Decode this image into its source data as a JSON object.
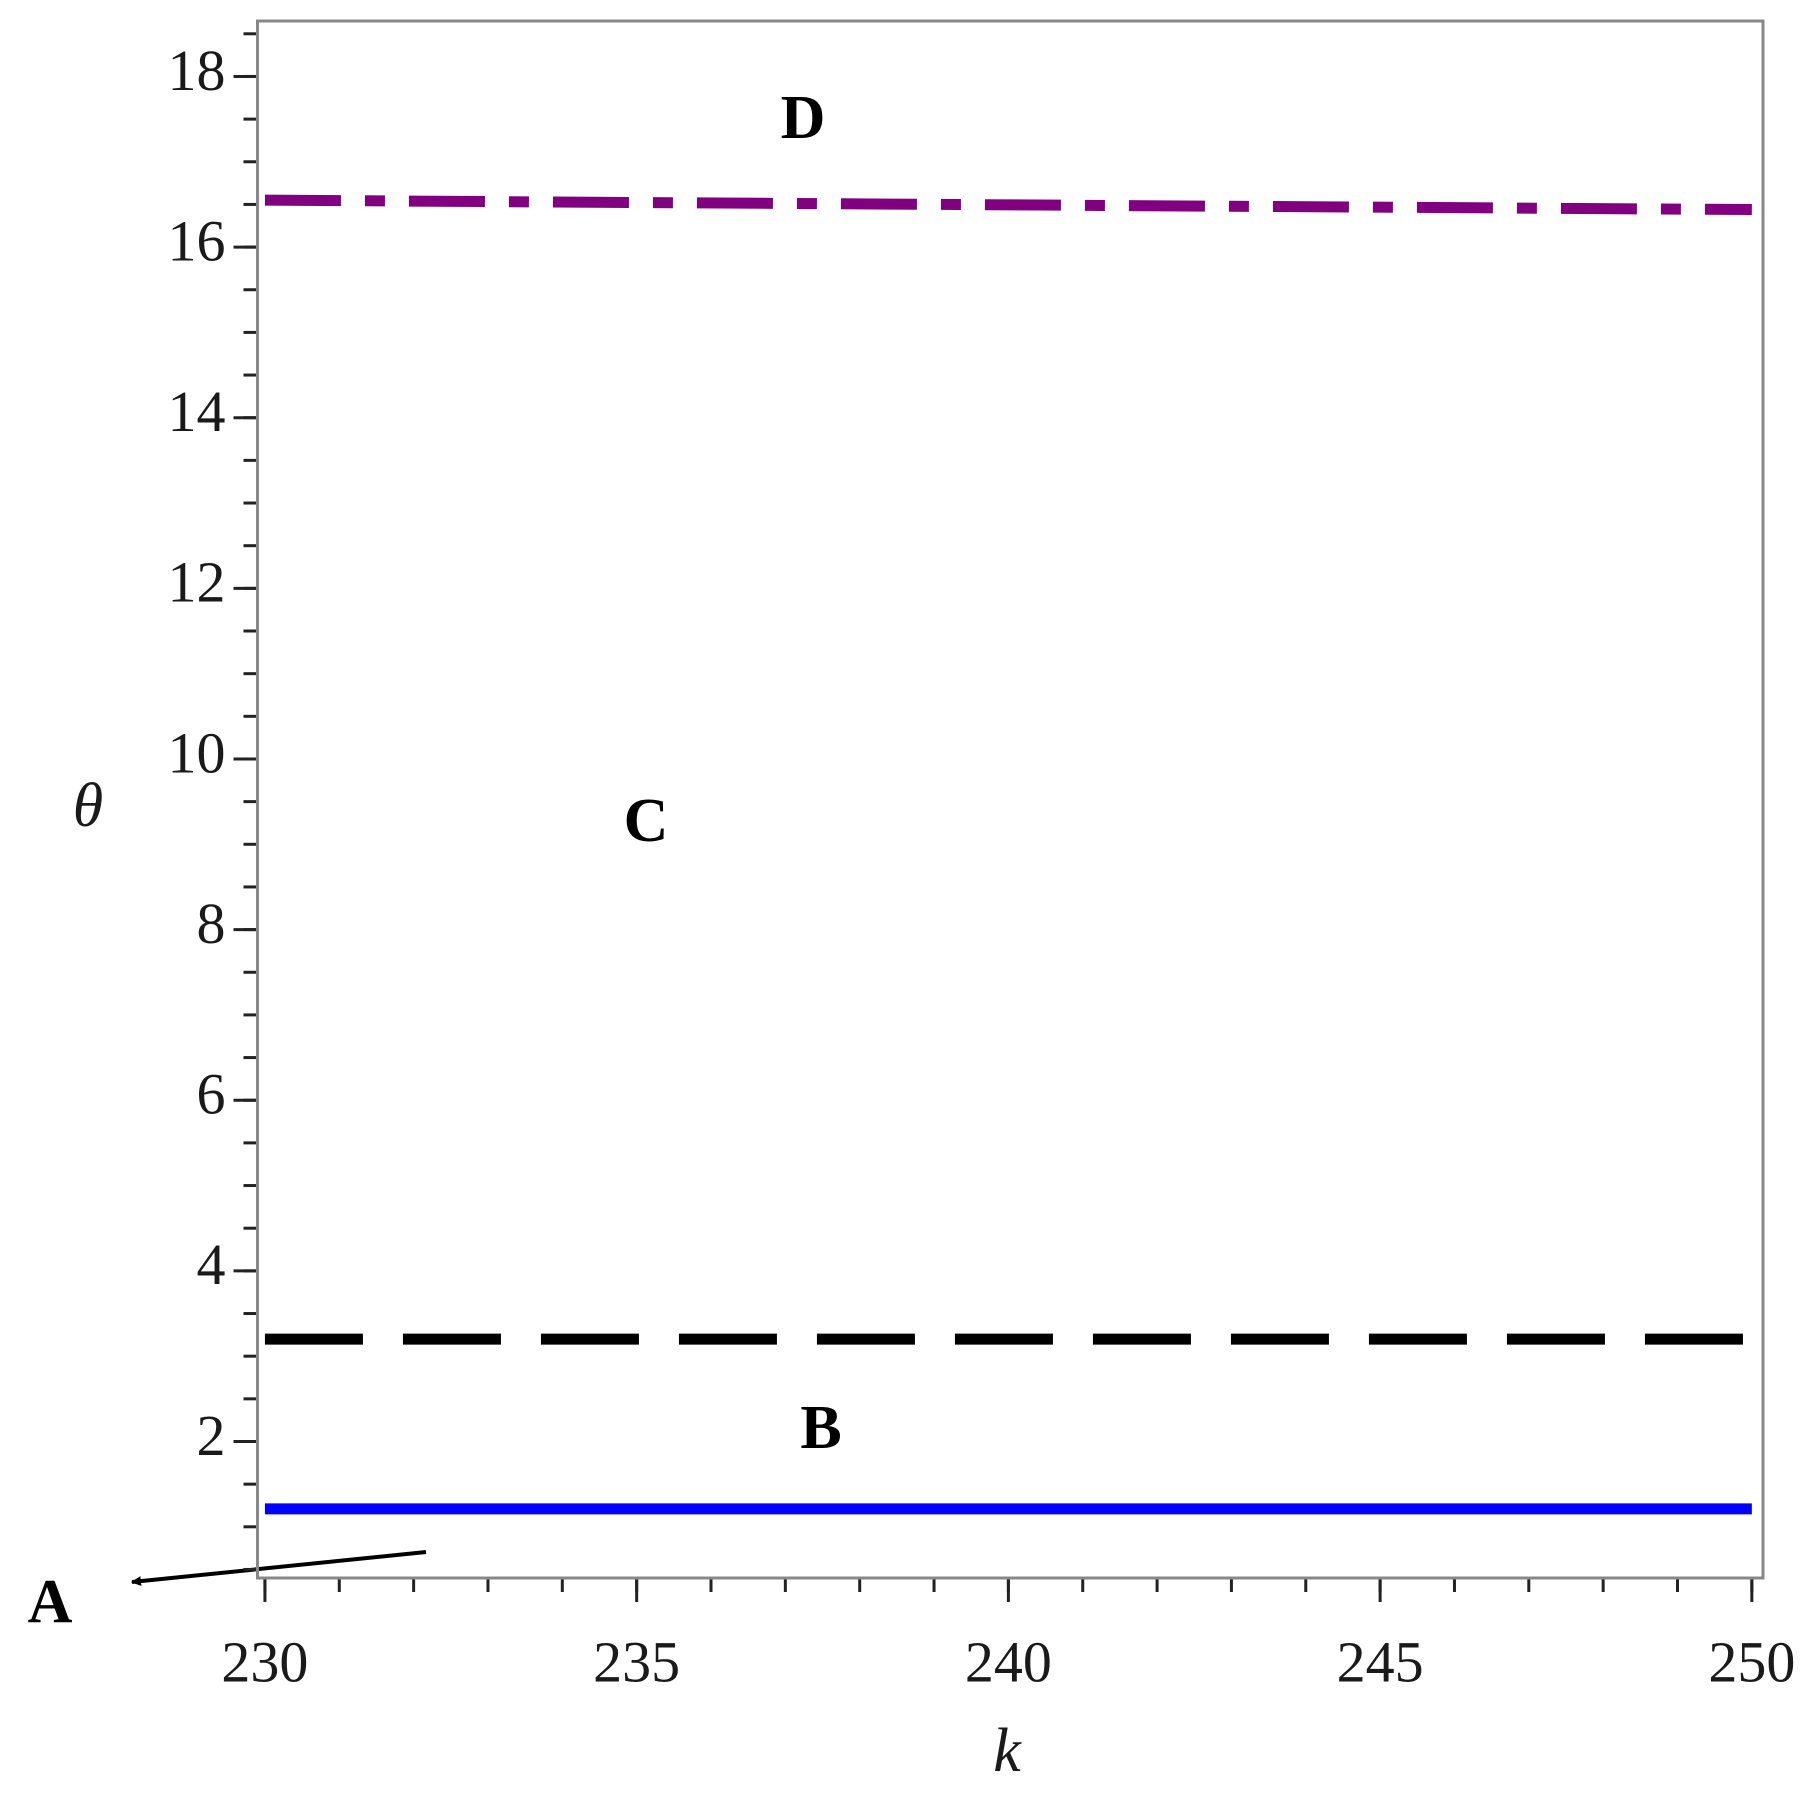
{
  "chart_data": {
    "type": "line",
    "x_label": "k",
    "y_label": "θ",
    "x": [
      230,
      250
    ],
    "series": [
      {
        "color": "#800080",
        "dash": "dashdot",
        "values": [
          16.55,
          16.44
        ]
      },
      {
        "color": "#000000",
        "dash": "dash",
        "values": [
          3.2,
          3.2
        ]
      },
      {
        "color": "#0000ff",
        "dash": "solid",
        "values": [
          1.21,
          1.21
        ]
      }
    ],
    "annotations": [
      "D",
      "C",
      "B",
      "A"
    ],
    "xlim": [
      229.9,
      250.15
    ],
    "ylim": [
      0.4,
      18.65
    ],
    "xticks": [
      230,
      235,
      240,
      245,
      250
    ],
    "yticks": [
      2,
      4,
      6,
      8,
      10,
      12,
      14,
      16,
      18
    ],
    "x_minor_step": 1,
    "y_minor_step": 0.5,
    "grid": false
  }
}
